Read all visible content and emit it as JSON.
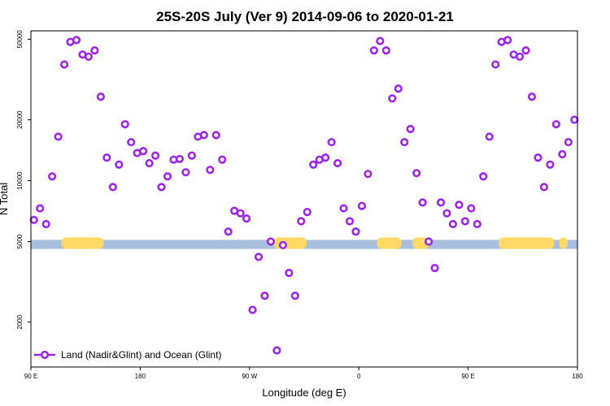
{
  "chart_data": {
    "type": "scatter",
    "title": "25S-20S July (Ver 9)   2014-09-06 to 2020-01-21",
    "xlabel": "Longitude (deg E)",
    "ylabel": "N Total",
    "y_scale": "log",
    "xlim": [
      90,
      540
    ],
    "ylim": [
      1200,
      55000
    ],
    "x_ticks": [
      {
        "value": 90,
        "label": "90 E"
      },
      {
        "value": 180,
        "label": "180"
      },
      {
        "value": 270,
        "label": "90 W"
      },
      {
        "value": 360,
        "label": "0"
      },
      {
        "value": 450,
        "label": "90 E"
      },
      {
        "value": 540,
        "label": "180"
      }
    ],
    "y_ticks": [
      {
        "value": 2000,
        "label": "2000"
      },
      {
        "value": 5000,
        "label": "5000"
      },
      {
        "value": 10000,
        "label": "10000"
      },
      {
        "value": 20000,
        "label": "20000"
      },
      {
        "value": 50000,
        "label": "50000"
      }
    ],
    "land_band": {
      "y_range": [
        4600,
        5100
      ],
      "land_color": "#FFD966",
      "ocean_color": "#A7BEDC",
      "land_x_ranges": [
        [
          115,
          150
        ],
        [
          290,
          317
        ],
        [
          375,
          395
        ],
        [
          404,
          418
        ],
        [
          475,
          521
        ],
        [
          525,
          532
        ]
      ]
    },
    "series": [
      {
        "name": "Land (Nadir&Glint) and Ocean (Glint)",
        "color": "#9B26E6",
        "x": [
          92.5,
          97.5,
          102.5,
          107.5,
          112.5,
          117.5,
          122.5,
          127.5,
          132.5,
          137.5,
          142.5,
          147.5,
          152.5,
          157.5,
          162.5,
          167.5,
          172.5,
          177.5,
          182.5,
          187.5,
          192.5,
          197.5,
          202.5,
          207.5,
          212.5,
          217.5,
          222.5,
          227.5,
          232.5,
          237.5,
          242.5,
          247.5,
          252.5,
          257.5,
          262.5,
          267.5,
          272.5,
          277.5,
          282.5,
          287.5,
          292.5,
          297.5,
          302.5,
          307.5,
          312.5,
          317.5,
          322.5,
          327.5,
          332.5,
          337.5,
          342.5,
          347.5,
          352.5,
          357.5,
          362.5,
          367.5,
          372.5,
          377.5,
          382.5,
          387.5,
          392.5,
          397.5,
          402.5,
          407.5,
          412.5,
          417.5,
          422.5,
          427.5,
          432.5,
          437.5,
          442.5,
          447.5,
          452.5,
          457.5,
          462.5,
          467.5,
          472.5,
          477.5,
          482.5,
          487.5,
          492.5,
          497.5,
          502.5,
          507.5,
          512.5,
          517.5,
          522.5,
          527.5,
          532.5,
          537.5
        ],
        "values": [
          6400,
          7300,
          6100,
          10500,
          16500,
          37500,
          48500,
          49500,
          42000,
          41000,
          44000,
          26000,
          13000,
          9300,
          12000,
          19000,
          15500,
          13700,
          14000,
          12200,
          13300,
          9300,
          10500,
          12700,
          12800,
          11000,
          13300,
          16500,
          16800,
          11300,
          16800,
          12700,
          5600,
          7100,
          6900,
          6500,
          2300,
          4200,
          2700,
          5000,
          1450,
          4800,
          3500,
          2700,
          6300,
          7000,
          12000,
          12700,
          13000,
          15500,
          12200,
          7300,
          6300,
          5600,
          7500,
          10800,
          44000,
          49000,
          44000,
          25500,
          28500,
          15500,
          18000,
          10900,
          7800,
          5000,
          3700,
          7800,
          6900,
          6100,
          7600,
          6300,
          7300,
          6100,
          10500,
          16500,
          37500,
          48500,
          49500,
          42000,
          41000,
          44000,
          26000,
          13000,
          9300,
          12000,
          19000,
          13500,
          15500,
          20000
        ]
      }
    ],
    "legend": {
      "position": "bottom-left",
      "entries": [
        "Land (Nadir&Glint) and Ocean (Glint)"
      ]
    },
    "grid": false
  }
}
